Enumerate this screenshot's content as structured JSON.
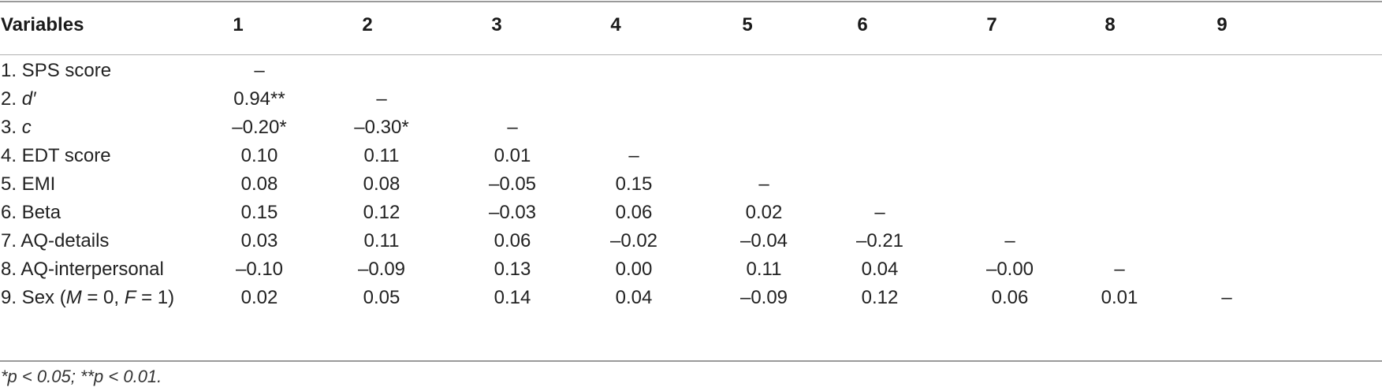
{
  "header": {
    "variables": "Variables",
    "cols": [
      "1",
      "2",
      "3",
      "4",
      "5",
      "6",
      "7",
      "8",
      "9"
    ]
  },
  "rows": [
    {
      "label_pre": "1. SPS score",
      "label_it": "",
      "label_post": "",
      "values": [
        "–",
        "",
        "",
        "",
        "",
        "",
        "",
        "",
        ""
      ]
    },
    {
      "label_pre": "2. ",
      "label_it": "d′",
      "label_post": "",
      "values": [
        "0.94**",
        "–",
        "",
        "",
        "",
        "",
        "",
        "",
        ""
      ]
    },
    {
      "label_pre": "3. ",
      "label_it": "c",
      "label_post": "",
      "values": [
        "–0.20*",
        "–0.30*",
        "–",
        "",
        "",
        "",
        "",
        "",
        ""
      ]
    },
    {
      "label_pre": "4. EDT score",
      "label_it": "",
      "label_post": "",
      "values": [
        "0.10",
        "0.11",
        "0.01",
        "–",
        "",
        "",
        "",
        "",
        ""
      ]
    },
    {
      "label_pre": "5. EMI",
      "label_it": "",
      "label_post": "",
      "values": [
        "0.08",
        "0.08",
        "–0.05",
        "0.15",
        "–",
        "",
        "",
        "",
        ""
      ]
    },
    {
      "label_pre": "6. Beta",
      "label_it": "",
      "label_post": "",
      "values": [
        "0.15",
        "0.12",
        "–0.03",
        "0.06",
        "0.02",
        "–",
        "",
        "",
        ""
      ]
    },
    {
      "label_pre": "7. AQ-details",
      "label_it": "",
      "label_post": "",
      "values": [
        "0.03",
        "0.11",
        "0.06",
        "–0.02",
        "–0.04",
        "–0.21",
        "–",
        "",
        ""
      ]
    },
    {
      "label_pre": "8. AQ-interpersonal",
      "label_it": "",
      "label_post": "",
      "values": [
        "–0.10",
        "–0.09",
        "0.13",
        "0.00",
        "0.11",
        "0.04",
        "–0.00",
        "–",
        ""
      ]
    },
    {
      "label_pre": "9. Sex (",
      "label_it": "M",
      "label_post": " = 0, ",
      "label_it2": "F",
      "label_post2": " = 1)",
      "values": [
        "0.02",
        "0.05",
        "0.14",
        "0.04",
        "–0.09",
        "0.12",
        "0.06",
        "0.01",
        "–"
      ]
    }
  ],
  "footnote": "*p < 0.05; **p < 0.01."
}
